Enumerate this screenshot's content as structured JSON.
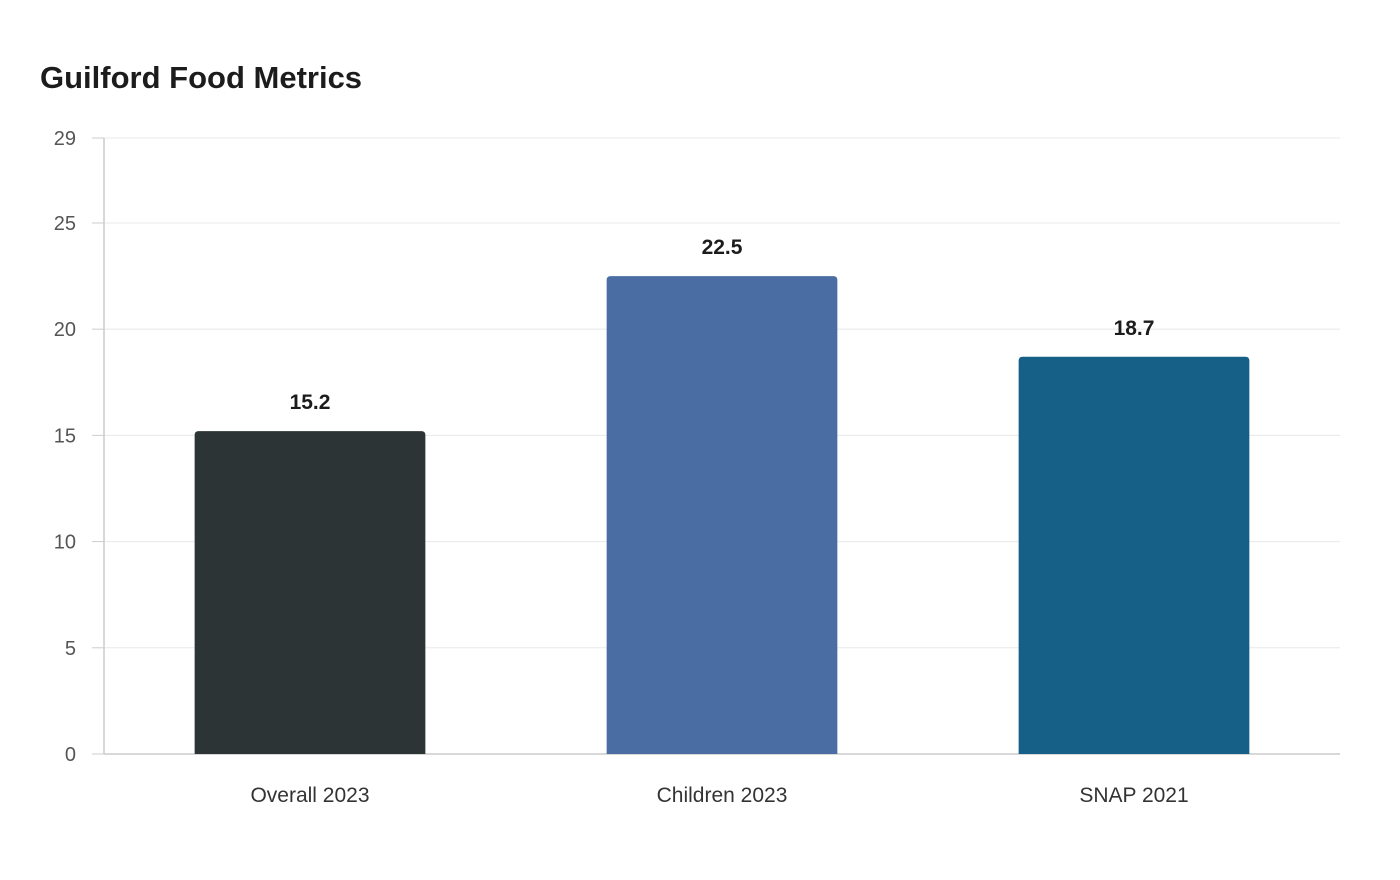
{
  "chart_data": {
    "type": "bar",
    "title": "Guilford Food Metrics",
    "xlabel": "",
    "ylabel": "",
    "categories": [
      "Overall 2023",
      "Children 2023",
      "SNAP 2021"
    ],
    "values": [
      15.2,
      22.5,
      18.7
    ],
    "value_labels": [
      "15.2",
      "22.5",
      "18.7"
    ],
    "colors": [
      "#2d3436",
      "#4a6ea3",
      "#166087"
    ],
    "ylim": [
      0,
      29
    ],
    "yticks": [
      0,
      5,
      10,
      15,
      20,
      25,
      29
    ],
    "ytick_labels": [
      "0",
      "5",
      "10",
      "15",
      "20",
      "25",
      "29"
    ],
    "grid": true,
    "legend": "none"
  }
}
